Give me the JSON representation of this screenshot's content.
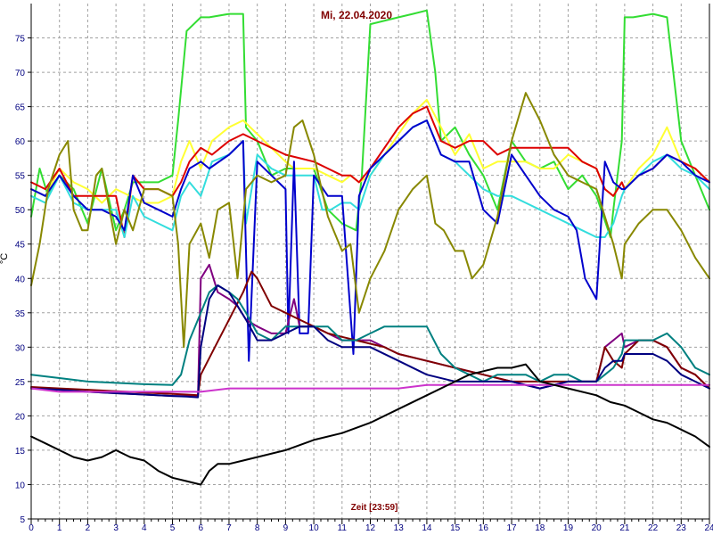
{
  "chart_data": {
    "type": "line",
    "title": "Mi, 22.04.2020",
    "xlabel": "Zeit [23:59]",
    "ylabel": "°C",
    "xlim": [
      0,
      24
    ],
    "ylim": [
      5,
      80
    ],
    "xticks": [
      "0",
      "1",
      "2",
      "3",
      "4",
      "5",
      "6",
      "7",
      "8",
      "9",
      "10",
      "11",
      "12",
      "13",
      "14",
      "15",
      "16",
      "17",
      "18",
      "19",
      "20",
      "21",
      "22",
      "23",
      "24"
    ],
    "yticks": [
      "5",
      "10",
      "15",
      "20",
      "25",
      "30",
      "35",
      "40",
      "45",
      "50",
      "55",
      "60",
      "65",
      "70",
      "75"
    ],
    "grid": true,
    "series": [
      {
        "color": "#33dd33",
        "x": [
          0,
          0.3,
          0.6,
          1,
          1.5,
          2,
          2.5,
          3,
          3.3,
          3.6,
          4,
          4.5,
          5,
          5.2,
          5.5,
          6,
          6.3,
          7,
          7.5,
          7.6,
          8,
          8.5,
          9,
          10,
          10.5,
          11,
          11.5,
          11.7,
          12,
          13,
          13.5,
          14,
          14.3,
          14.5,
          15,
          15.5,
          16,
          16.5,
          17,
          17.5,
          18,
          18.5,
          19,
          19.5,
          20,
          20.5,
          20.6,
          20.9,
          21,
          21.3,
          22,
          22.5,
          23,
          23.5,
          24
        ],
        "y": [
          49,
          56,
          52,
          55,
          53,
          48,
          56,
          47,
          50,
          54,
          54,
          54,
          55,
          63,
          76,
          78,
          78,
          78.5,
          78.5,
          62,
          60,
          55,
          56,
          56,
          50,
          48,
          47,
          55,
          77,
          78,
          78.5,
          79,
          70,
          60,
          62,
          58,
          55,
          50,
          60,
          57,
          56,
          57,
          53,
          55,
          52,
          46,
          50,
          60,
          78,
          78,
          78.5,
          78,
          60,
          55,
          50
        ]
      },
      {
        "color": "#ffff33",
        "x": [
          0,
          0.5,
          1,
          1.5,
          2,
          2.5,
          3,
          3.5,
          4,
          4.5,
          5,
          5.3,
          5.6,
          6,
          6.4,
          7,
          7.5,
          8,
          8.5,
          9,
          9.3,
          9.6,
          10,
          10.5,
          11,
          11.3,
          11.6,
          12,
          12.5,
          13,
          13.5,
          14,
          14.5,
          15,
          15.5,
          16,
          16.5,
          17,
          17.5,
          18,
          18.5,
          19,
          19.5,
          20,
          20.3,
          20.6,
          20.9,
          21,
          21.5,
          22,
          22.5,
          23,
          23.5,
          24
        ],
        "y": [
          53,
          52,
          56,
          54,
          53,
          51,
          53,
          52,
          51,
          51,
          52,
          57,
          60,
          56,
          60,
          62,
          63,
          61,
          59,
          57,
          56,
          56,
          56,
          55,
          54,
          55,
          54,
          55,
          58,
          61,
          64,
          66,
          62,
          58,
          61,
          56,
          57,
          57,
          57,
          56,
          56,
          58,
          57,
          56,
          53,
          52,
          54,
          53,
          56,
          58,
          62,
          57,
          56,
          54
        ]
      },
      {
        "color": "#dd0000",
        "x": [
          0,
          0.5,
          1,
          1.5,
          2,
          2.5,
          3,
          3.3,
          3.6,
          4,
          4.5,
          5,
          5.3,
          5.6,
          6,
          6.4,
          7,
          7.5,
          8,
          8.5,
          9,
          9.5,
          10,
          10.5,
          11,
          11.3,
          11.6,
          12,
          12.5,
          13,
          13.5,
          14,
          14.5,
          15,
          15.5,
          16,
          16.5,
          17,
          17.5,
          18,
          18.5,
          19,
          19.5,
          20,
          20.3,
          20.6,
          20.9,
          21,
          21.5,
          22,
          22.5,
          23,
          23.5,
          24
        ],
        "y": [
          54,
          53,
          56,
          52,
          52,
          52,
          52,
          46,
          55,
          53,
          53,
          52,
          54,
          57,
          59,
          58,
          60,
          61,
          60,
          59,
          58,
          57.5,
          57,
          56,
          55,
          55,
          54,
          56,
          59,
          62,
          64,
          65,
          60,
          59,
          60,
          60,
          58,
          59,
          59,
          59,
          59,
          59,
          57,
          56,
          53,
          52,
          54,
          53,
          55,
          56,
          58,
          57,
          56,
          54
        ]
      },
      {
        "color": "#33dddd",
        "x": [
          0,
          0.5,
          1,
          1.5,
          2,
          2.5,
          3,
          3.3,
          3.6,
          4,
          4.5,
          5,
          5.3,
          5.6,
          6,
          6.4,
          7,
          7.5,
          7.6,
          8,
          8.5,
          9,
          9.3,
          9.6,
          10,
          10.3,
          10.6,
          11,
          11.3,
          11.6,
          12,
          12.5,
          13,
          13.5,
          14,
          14.5,
          15,
          15.5,
          16,
          16.5,
          17,
          17.5,
          18,
          18.5,
          19,
          19.5,
          20,
          20.3,
          20.6,
          20.9,
          21,
          21.5,
          22,
          22.5,
          23,
          23.5,
          24
        ],
        "y": [
          52,
          51,
          55,
          51,
          50,
          50,
          50,
          46,
          52,
          49,
          48,
          47,
          52,
          54,
          52,
          57,
          58,
          60,
          48,
          58,
          56,
          55,
          55,
          55,
          55,
          50,
          50,
          51,
          51,
          50,
          55,
          58,
          60,
          62,
          63,
          58,
          57,
          55,
          53,
          52,
          52,
          51,
          50,
          49,
          48,
          47,
          46,
          46,
          48,
          52,
          53,
          55,
          57,
          58,
          56,
          55,
          53
        ]
      },
      {
        "color": "#0000cc",
        "x": [
          0,
          0.5,
          1,
          1.5,
          2,
          2.5,
          3,
          3.3,
          3.6,
          4,
          4.5,
          5,
          5.3,
          5.6,
          6,
          6.3,
          7,
          7.5,
          7.7,
          8,
          8.5,
          9,
          9.1,
          9.3,
          9.5,
          9.8,
          10,
          10.5,
          11,
          11.4,
          11.6,
          12,
          12.5,
          13,
          13.5,
          14,
          14.5,
          15,
          15.5,
          16,
          16.5,
          17,
          17.5,
          18,
          18.5,
          19,
          19.3,
          19.6,
          20,
          20.3,
          20.6,
          20.9,
          21,
          21.5,
          22,
          22.5,
          23,
          23.5,
          24
        ],
        "y": [
          53,
          52,
          55,
          52,
          50,
          50,
          49,
          47,
          55,
          51,
          50,
          49,
          53,
          56,
          57,
          56,
          58,
          60,
          28,
          57,
          55,
          53,
          32,
          57,
          32,
          32,
          55,
          52,
          52,
          29,
          52,
          56,
          58,
          60,
          62,
          63,
          58,
          57,
          57,
          50,
          48,
          58,
          55,
          52,
          50,
          49,
          47,
          40,
          37,
          57,
          54,
          53,
          53,
          55,
          56,
          58,
          57,
          55,
          54
        ]
      },
      {
        "color": "#888800",
        "x": [
          0,
          0.3,
          0.6,
          1,
          1.3,
          1.5,
          1.8,
          2,
          2.3,
          2.5,
          3,
          3.3,
          3.6,
          4,
          4.5,
          5,
          5.2,
          5.4,
          5.6,
          6,
          6.3,
          6.6,
          7,
          7.3,
          7.6,
          8,
          8.5,
          9,
          9.3,
          9.6,
          10,
          10.5,
          11,
          11.3,
          11.6,
          12,
          12.5,
          13,
          13.5,
          14,
          14.3,
          14.6,
          15,
          15.3,
          15.6,
          16,
          16.5,
          17,
          17.5,
          18,
          18.5,
          19,
          19.5,
          20,
          20.3,
          20.6,
          20.9,
          21,
          21.5,
          22,
          22.5,
          23,
          23.5,
          24
        ],
        "y": [
          39,
          45,
          53,
          58,
          60,
          50,
          47,
          47,
          55,
          56,
          45,
          50,
          47,
          53,
          53,
          52,
          45,
          30,
          45,
          48,
          43,
          50,
          51,
          40,
          53,
          55,
          54,
          55,
          62,
          63,
          58,
          49,
          44,
          45,
          35,
          40,
          44,
          50,
          53,
          55,
          48,
          47,
          44,
          44,
          40,
          42,
          49,
          60,
          67,
          63,
          58,
          55,
          54,
          53,
          49,
          45,
          40,
          45,
          48,
          50,
          50,
          47,
          43,
          40
        ]
      },
      {
        "color": "#800080",
        "x": [
          0,
          1,
          2,
          3,
          4,
          5,
          5.5,
          5.9,
          6,
          6.3,
          6.6,
          7,
          7.3,
          7.6,
          8,
          8.5,
          9,
          9.3,
          9.5,
          10,
          10.5,
          11,
          11.5,
          12,
          13,
          14,
          15,
          16,
          17,
          18,
          19,
          20,
          20.3,
          20.6,
          20.9,
          21,
          21.5,
          22,
          22.5,
          23,
          23.5,
          24
        ],
        "y": [
          24,
          23.8,
          23.5,
          23.3,
          23.1,
          22.9,
          22.9,
          22.8,
          40,
          42,
          38,
          37,
          36,
          34,
          33,
          32,
          32,
          37,
          33,
          33,
          32,
          31,
          31,
          31,
          29,
          28,
          27,
          26,
          25,
          24,
          25,
          25,
          30,
          31,
          32,
          30,
          31,
          31,
          30,
          27,
          26,
          24
        ]
      },
      {
        "color": "#800000",
        "x": [
          0,
          1,
          2,
          3,
          4,
          5,
          5.5,
          5.9,
          6,
          6.5,
          7,
          7.5,
          7.8,
          8,
          8.5,
          9,
          9.5,
          10,
          10.5,
          11,
          11.5,
          12,
          12.5,
          13,
          14,
          15,
          16,
          17,
          18,
          19,
          20,
          20.3,
          20.6,
          20.9,
          21,
          21.5,
          22,
          22.5,
          23,
          23.5,
          24
        ],
        "y": [
          24.2,
          24,
          23.8,
          23.6,
          23.4,
          23.2,
          23.1,
          23,
          26,
          30,
          34,
          38,
          41,
          40,
          36,
          35,
          34,
          33,
          32,
          31.5,
          31,
          30.5,
          30,
          29,
          28,
          27,
          26,
          25,
          25,
          25,
          25,
          30,
          28,
          27,
          29,
          31,
          31,
          30,
          27,
          26,
          24
        ]
      },
      {
        "color": "#008080",
        "x": [
          0,
          1,
          2,
          3,
          4,
          5,
          5.3,
          5.6,
          6,
          6.3,
          6.6,
          7,
          7.3,
          7.6,
          8,
          8.5,
          9,
          9.5,
          10,
          10.5,
          11,
          11.5,
          12,
          12.5,
          13,
          13.5,
          14,
          14.5,
          15,
          15.5,
          16,
          16.5,
          17,
          17.5,
          18,
          18.5,
          19,
          19.5,
          20,
          20.3,
          20.6,
          20.9,
          21,
          21.5,
          22,
          22.5,
          23,
          23.5,
          24
        ],
        "y": [
          26,
          25.5,
          25,
          24.8,
          24.6,
          24.5,
          26,
          31,
          35,
          38,
          39,
          38,
          37,
          35,
          32,
          31,
          33,
          33,
          33,
          33,
          31,
          31,
          32,
          33,
          33,
          33,
          33,
          29,
          27,
          26,
          25,
          26,
          26,
          26,
          25,
          26,
          26,
          25,
          25,
          26,
          27,
          29,
          31,
          31,
          31,
          32,
          30,
          27,
          26
        ]
      },
      {
        "color": "#000080",
        "x": [
          0,
          1,
          2,
          3,
          4,
          5,
          5.5,
          5.9,
          6,
          6.3,
          6.6,
          7,
          7.3,
          7.6,
          8,
          8.5,
          9,
          9.5,
          10,
          10.5,
          11,
          11.5,
          12,
          13,
          14,
          15,
          15.5,
          16,
          16.5,
          17,
          18,
          19,
          20,
          20.3,
          20.6,
          20.9,
          21,
          21.5,
          22,
          22.5,
          23,
          23.5,
          24
        ],
        "y": [
          24,
          23.8,
          23.5,
          23.3,
          23.1,
          22.9,
          22.8,
          22.7,
          30,
          37,
          39,
          38,
          36,
          34,
          31,
          31,
          32,
          33,
          33,
          31,
          30,
          30,
          30,
          28,
          26,
          25,
          25,
          25,
          25,
          25,
          24,
          25,
          25,
          27,
          28,
          28,
          29,
          29,
          29,
          28,
          26,
          25,
          24
        ]
      },
      {
        "color": "#cc33cc",
        "x": [
          0,
          1,
          2,
          3,
          4,
          5,
          6,
          7,
          8,
          9,
          10,
          11,
          12,
          13,
          14,
          15,
          16,
          17,
          18,
          19,
          20,
          21,
          22,
          23,
          24
        ],
        "y": [
          24,
          23.5,
          23.5,
          23.5,
          23.5,
          23.5,
          23.5,
          24,
          24,
          24,
          24,
          24,
          24,
          24,
          24.5,
          24.5,
          24.5,
          24.5,
          24.5,
          24.5,
          24.5,
          24.5,
          24.5,
          24.5,
          24.5
        ]
      },
      {
        "color": "#000000",
        "x": [
          0,
          0.5,
          1,
          1.5,
          2,
          2.5,
          3,
          3.5,
          4,
          4.5,
          5,
          5.5,
          6,
          6.3,
          6.6,
          7,
          7.5,
          8,
          9,
          10,
          11,
          12,
          13,
          14,
          15,
          15.5,
          16,
          16.5,
          17,
          17.5,
          18,
          18.5,
          19,
          20,
          20.5,
          21,
          21.5,
          22,
          22.5,
          23,
          23.5,
          24
        ],
        "y": [
          17,
          16,
          15,
          14,
          13.5,
          14,
          15,
          14,
          13.5,
          12,
          11,
          10.5,
          10,
          12,
          13,
          13,
          13.5,
          14,
          15,
          16.5,
          17.5,
          19,
          21,
          23,
          25,
          26,
          26.5,
          27,
          27,
          27.5,
          25,
          24.5,
          24,
          23,
          22,
          21.5,
          20.5,
          19.5,
          19,
          18,
          17,
          15.5
        ]
      }
    ]
  }
}
